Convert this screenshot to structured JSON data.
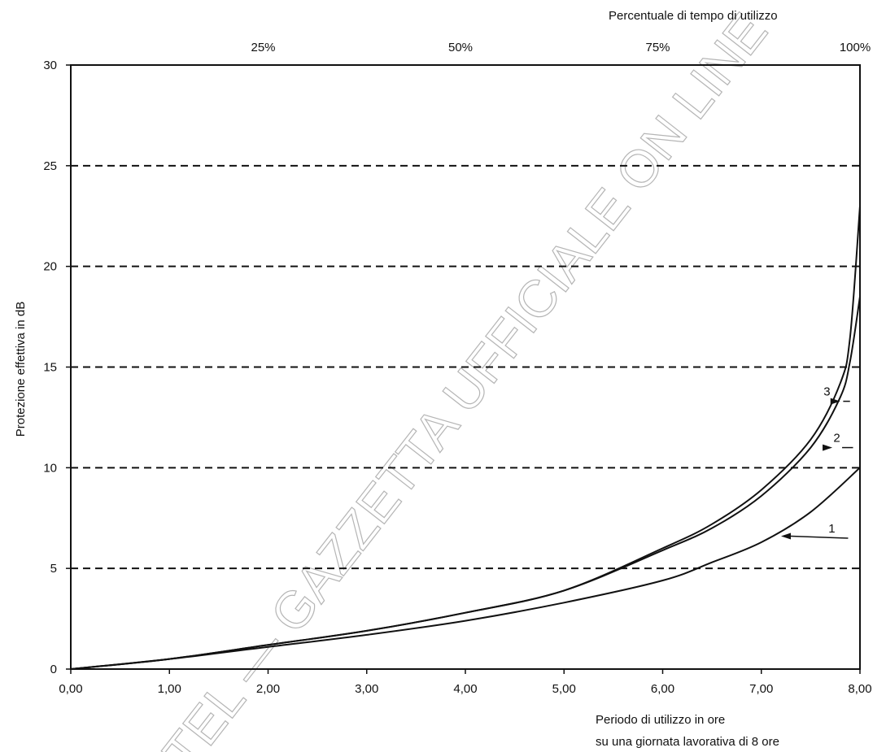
{
  "chart_data": {
    "type": "line",
    "top_axis_title": "Percentuale di tempo di utilizzo",
    "top_ticks": [
      {
        "value": 2,
        "label": "25%"
      },
      {
        "value": 4,
        "label": "50%"
      },
      {
        "value": 6,
        "label": "75%"
      },
      {
        "value": 8,
        "label": "100%"
      }
    ],
    "ylabel": "Protezione effettiva in dB",
    "xlabel_lines": [
      "Periodo di utilizzo in ore",
      "su una giornata lavorativa di 8 ore"
    ],
    "xlim": [
      0,
      8
    ],
    "ylim": [
      0,
      30
    ],
    "x_ticks": [
      {
        "value": 0,
        "label": "0,00"
      },
      {
        "value": 1,
        "label": "1,00"
      },
      {
        "value": 2,
        "label": "2,00"
      },
      {
        "value": 3,
        "label": "3,00"
      },
      {
        "value": 4,
        "label": "4,00"
      },
      {
        "value": 5,
        "label": "5,00"
      },
      {
        "value": 6,
        "label": "6,00"
      },
      {
        "value": 7,
        "label": "7,00"
      },
      {
        "value": 8,
        "label": "8,00"
      }
    ],
    "y_ticks": [
      {
        "value": 0,
        "label": "0"
      },
      {
        "value": 5,
        "label": "5"
      },
      {
        "value": 10,
        "label": "10"
      },
      {
        "value": 15,
        "label": "15"
      },
      {
        "value": 20,
        "label": "20"
      },
      {
        "value": 25,
        "label": "25"
      },
      {
        "value": 30,
        "label": "30"
      }
    ],
    "dashed_gridlines_y": [
      5,
      10,
      15,
      20,
      25
    ],
    "series": [
      {
        "name": "1",
        "x": [
          0,
          1,
          2,
          3,
          4,
          5,
          6,
          6.5,
          7,
          7.5,
          8
        ],
        "y": [
          0,
          0.5,
          1.1,
          1.7,
          2.4,
          3.3,
          4.4,
          5.3,
          6.3,
          7.8,
          10.0
        ]
      },
      {
        "name": "2",
        "x": [
          0,
          1,
          2,
          3,
          4,
          5,
          6,
          6.5,
          7,
          7.5,
          7.8,
          7.9,
          8
        ],
        "y": [
          0,
          0.5,
          1.2,
          1.9,
          2.8,
          3.9,
          5.9,
          7.0,
          8.6,
          11.0,
          13.5,
          15.3,
          18.5
        ]
      },
      {
        "name": "3",
        "x": [
          0,
          1,
          2,
          3,
          4,
          5,
          6,
          6.5,
          7,
          7.5,
          7.8,
          7.9,
          8
        ],
        "y": [
          0,
          0.5,
          1.2,
          1.9,
          2.8,
          3.9,
          6.0,
          7.2,
          8.9,
          11.4,
          14.2,
          16.5,
          23.0
        ]
      }
    ],
    "curve_labels": [
      {
        "name": "1",
        "text": "1",
        "label_x": 7.55,
        "label_y": 6.5,
        "target_x": 7.2,
        "target_y": 6.6
      },
      {
        "name": "2",
        "text": "2",
        "label_x": 7.6,
        "label_y": 11.0,
        "target_x": 7.72,
        "target_y": 11.0
      },
      {
        "name": "3",
        "text": "3",
        "label_x": 7.5,
        "label_y": 13.3,
        "target_x": 7.8,
        "target_y": 13.3
      }
    ],
    "grid": false,
    "legend": "none"
  },
  "watermark": "TEL — GAZZETTA UFFICIALE ON LINE",
  "colors": {
    "line": "#111111",
    "grid": "#111111",
    "watermark": "#b5b5b5"
  }
}
